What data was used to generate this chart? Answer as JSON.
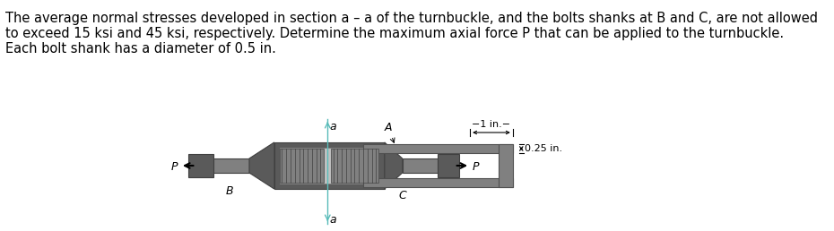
{
  "text_lines": [
    "The average normal stresses developed in section a – a of the turnbuckle, and the bolts shanks at B and C, are not allowed",
    "to exceed 15 ksi and 45 ksi, respectively. Determine the maximum axial force P that can be applied to the turnbuckle.",
    "Each bolt shank has a diameter of 0.5 in."
  ],
  "fig_width": 9.3,
  "fig_height": 2.58,
  "dpi": 100,
  "background_color": "#ffffff",
  "text_color": "#000000",
  "text_fontsize": 10.5,
  "gray_dark": "#5a5a5a",
  "gray_mid": "#808080",
  "gray_light": "#aaaaaa",
  "gray_body": "#6e6e6e",
  "gray_inner": "#989898",
  "cyan_line": "#5abcb9",
  "label_a_top": "a",
  "label_a_bot": "a",
  "label_A": "A",
  "label_B": "B",
  "label_C": "C",
  "label_P_left": "P",
  "label_P_right": "P",
  "dim_1in": "−1 in.−",
  "dim_025in": "0.25 in."
}
